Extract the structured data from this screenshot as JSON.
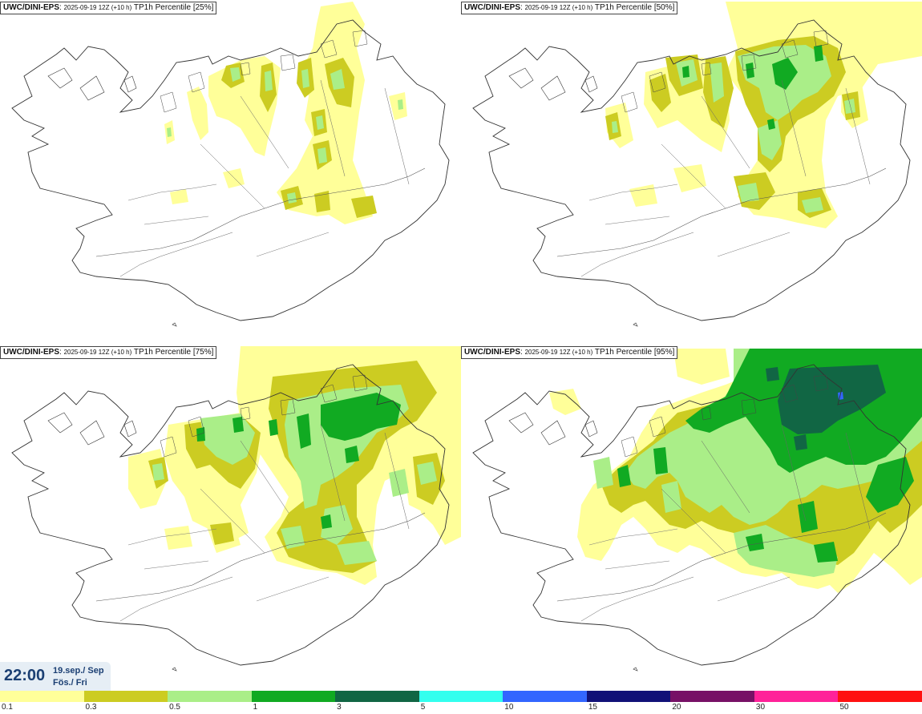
{
  "panels": [
    {
      "source": "UWC/DINI-EPS",
      "run": "2025-09-19 12Z (+10 h)",
      "param": "TP1h Percentile [25%]"
    },
    {
      "source": "UWC/DINI-EPS",
      "run": "2025-09-19 12Z (+10 h)",
      "param": "TP1h Percentile [50%]"
    },
    {
      "source": "UWC/DINI-EPS",
      "run": "2025-09-19 12Z (+10 h)",
      "param": "TP1h Percentile [75%]"
    },
    {
      "source": "UWC/DINI-EPS",
      "run": "2025-09-19 12Z (+10 h)",
      "param": "TP1h Percentile [95%]"
    }
  ],
  "valid_time": {
    "time": "22:00",
    "date": "19.sep./ Sep",
    "day": "Fös./ Fri"
  },
  "legend": {
    "labels": [
      "0.1",
      "0.3",
      "0.5",
      "1",
      "3",
      "5",
      "10",
      "15",
      "20",
      "30",
      "50"
    ],
    "colors": [
      "#ffff99",
      "#cccc22",
      "#aaee88",
      "#11aa22",
      "#116644",
      "#33ffee",
      "#3366ff",
      "#111177",
      "#771166",
      "#ff2299",
      "#ff1111"
    ]
  }
}
